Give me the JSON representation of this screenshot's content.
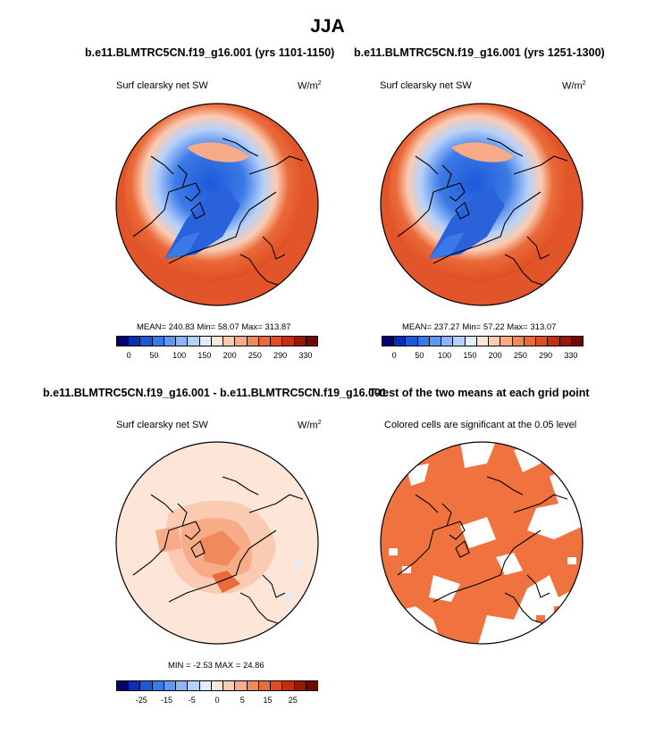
{
  "title": "JJA",
  "panels": [
    {
      "title": "b.e11.BLMTRC5CN.f19_g16.001 (yrs 1101-1150)",
      "label": "Surf clearsky net SW",
      "units": "W/m",
      "units_sup": "2",
      "stats": "MEAN= 240.83  Min=  58.07  Max= 313.87",
      "colorbar": {
        "colors": [
          "#08006e",
          "#0b2fb4",
          "#1e58d8",
          "#3b7ae6",
          "#5f98f0",
          "#8cb6f6",
          "#b6d2fa",
          "#e2edfc",
          "#fde6d8",
          "#fbcbb1",
          "#f7ab87",
          "#f08a5e",
          "#ea6a3a",
          "#e04e23",
          "#c42f12",
          "#9a1806",
          "#6e0a02"
        ],
        "tick_labels": [
          "0",
          "50",
          "100",
          "150",
          "200",
          "250",
          "290",
          "330"
        ]
      }
    },
    {
      "title": "b.e11.BLMTRC5CN.f19_g16.001 (yrs 1251-1300)",
      "label": "Surf clearsky net SW",
      "units": "W/m",
      "units_sup": "2",
      "stats": "MEAN= 237.27  Min=  57.22  Max= 313.07",
      "colorbar": {
        "colors": [
          "#08006e",
          "#0b2fb4",
          "#1e58d8",
          "#3b7ae6",
          "#5f98f0",
          "#8cb6f6",
          "#b6d2fa",
          "#e2edfc",
          "#fde6d8",
          "#fbcbb1",
          "#f7ab87",
          "#f08a5e",
          "#ea6a3a",
          "#e04e23",
          "#c42f12",
          "#9a1806",
          "#6e0a02"
        ],
        "tick_labels": [
          "0",
          "50",
          "100",
          "150",
          "200",
          "250",
          "290",
          "330"
        ]
      }
    },
    {
      "title": "b.e11.BLMTRC5CN.f19_g16.001 - b.e11.BLMTRC5CN.f19_g16.001",
      "label": "Surf clearsky net SW",
      "units": "W/m",
      "units_sup": "2",
      "stats": "MIN =  -2.53 MAX =  24.86",
      "colorbar": {
        "colors": [
          "#08006e",
          "#0b2fb4",
          "#1e58d8",
          "#3b7ae6",
          "#5f98f0",
          "#8cb6f6",
          "#b6d2fa",
          "#e2edfc",
          "#fde6d8",
          "#fbcbb1",
          "#f7ab87",
          "#f08a5e",
          "#ea6a3a",
          "#e04e23",
          "#c42f12",
          "#9a1806",
          "#6e0a02"
        ],
        "tick_labels": [
          "-25",
          "-15",
          "-5",
          "0",
          "5",
          "15",
          "25"
        ]
      }
    },
    {
      "title": "T-test of the two means at each grid point",
      "label": "Colored cells are significant at the 0.05 level"
    }
  ],
  "chart_data": [
    {
      "type": "heatmap",
      "title": "b.e11.BLMTRC5CN.f19_g16.001 (yrs 1101-1150)",
      "field": "Surf clearsky net SW",
      "units": "W/m2",
      "projection": "north polar stereographic",
      "mean": 240.83,
      "min": 58.07,
      "max": 313.87,
      "color_levels": [
        0,
        50,
        100,
        150,
        200,
        250,
        290,
        330
      ]
    },
    {
      "type": "heatmap",
      "title": "b.e11.BLMTRC5CN.f19_g16.001 (yrs 1251-1300)",
      "field": "Surf clearsky net SW",
      "units": "W/m2",
      "projection": "north polar stereographic",
      "mean": 237.27,
      "min": 57.22,
      "max": 313.07,
      "color_levels": [
        0,
        50,
        100,
        150,
        200,
        250,
        290,
        330
      ]
    },
    {
      "type": "heatmap",
      "title": "b.e11.BLMTRC5CN.f19_g16.001 - b.e11.BLMTRC5CN.f19_g16.001",
      "field": "Surf clearsky net SW",
      "units": "W/m2",
      "projection": "north polar stereographic",
      "min": -2.53,
      "max": 24.86,
      "color_levels": [
        -25,
        -15,
        -5,
        0,
        5,
        15,
        25
      ]
    },
    {
      "type": "heatmap",
      "title": "T-test of the two means at each grid point",
      "field": "Colored cells are significant at the 0.05 level",
      "projection": "north polar stereographic",
      "significance_level": 0.05,
      "colors": {
        "significant": "#f0733f",
        "not_significant": "#ffffff"
      }
    }
  ]
}
